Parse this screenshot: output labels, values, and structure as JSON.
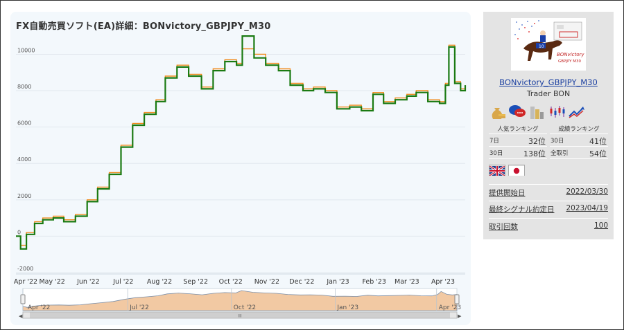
{
  "page": {
    "title": "FX自動売買ソフト(EA)詳細：BONvictory_GBPJPY_M30"
  },
  "chart_data": {
    "type": "line",
    "y_ticks": [
      "10000",
      "8000",
      "6000",
      "4000",
      "2000",
      "0",
      "-2000"
    ],
    "ylim": [
      -2000,
      11500
    ],
    "x_ticks": [
      "Apr '22",
      "May '22",
      "Jun '22",
      "Jul '22",
      "Aug '22",
      "Sep '22",
      "Oct '22",
      "Nov '22",
      "Dec '22",
      "Jan '23",
      "Feb '23",
      "Mar '23",
      "Apr '23"
    ],
    "xlim": [
      "2022-03-30",
      "2023-04-19"
    ],
    "navigator_labels": [
      "Apr '22",
      "Jul '22",
      "Oct '22",
      "Jan '23",
      "Apr '23"
    ],
    "navigator_scroll_label": "III",
    "series": [
      {
        "color": "#f08a1c",
        "x": [
          "2022-03-30",
          "2022-04-03",
          "2022-04-08",
          "2022-04-15",
          "2022-04-22",
          "2022-05-01",
          "2022-05-10",
          "2022-05-20",
          "2022-05-30",
          "2022-06-08",
          "2022-06-18",
          "2022-06-28",
          "2022-07-08",
          "2022-07-18",
          "2022-07-28",
          "2022-08-05",
          "2022-08-15",
          "2022-08-25",
          "2022-09-05",
          "2022-09-15",
          "2022-09-25",
          "2022-10-05",
          "2022-10-10",
          "2022-10-20",
          "2022-10-30",
          "2022-11-10",
          "2022-11-20",
          "2022-12-01",
          "2022-12-10",
          "2022-12-20",
          "2022-12-30",
          "2023-01-10",
          "2023-01-20",
          "2023-01-30",
          "2023-02-08",
          "2023-02-18",
          "2023-02-28",
          "2023-03-08",
          "2023-03-18",
          "2023-03-28",
          "2023-04-02",
          "2023-04-05",
          "2023-04-10",
          "2023-04-15",
          "2023-04-19"
        ],
        "y": [
          0,
          -500,
          200,
          800,
          1000,
          1100,
          900,
          1200,
          2000,
          2700,
          3500,
          5000,
          6200,
          6800,
          7500,
          8800,
          9400,
          8900,
          8200,
          9200,
          9700,
          9500,
          10300,
          10000,
          9500,
          9200,
          8400,
          8100,
          8200,
          8000,
          7100,
          7200,
          7000,
          7900,
          7400,
          7600,
          7800,
          8000,
          7500,
          7400,
          8400,
          10500,
          8500,
          8100,
          8300
        ]
      },
      {
        "color": "#1a7a12",
        "x": [
          "2022-03-30",
          "2022-04-03",
          "2022-04-08",
          "2022-04-15",
          "2022-04-22",
          "2022-05-01",
          "2022-05-10",
          "2022-05-20",
          "2022-05-30",
          "2022-06-08",
          "2022-06-18",
          "2022-06-28",
          "2022-07-08",
          "2022-07-18",
          "2022-07-28",
          "2022-08-05",
          "2022-08-15",
          "2022-08-25",
          "2022-09-05",
          "2022-09-15",
          "2022-09-25",
          "2022-10-05",
          "2022-10-10",
          "2022-10-20",
          "2022-10-30",
          "2022-11-10",
          "2022-11-20",
          "2022-12-01",
          "2022-12-10",
          "2022-12-20",
          "2022-12-30",
          "2023-01-10",
          "2023-01-20",
          "2023-01-30",
          "2023-02-08",
          "2023-02-18",
          "2023-02-28",
          "2023-03-08",
          "2023-03-18",
          "2023-03-28",
          "2023-04-02",
          "2023-04-05",
          "2023-04-10",
          "2023-04-15",
          "2023-04-19"
        ],
        "y": [
          0,
          -700,
          100,
          700,
          900,
          1000,
          800,
          1100,
          1900,
          2600,
          3400,
          4900,
          6100,
          6700,
          7400,
          8700,
          9300,
          8800,
          8100,
          9100,
          9600,
          9400,
          11000,
          9800,
          9400,
          9100,
          8300,
          8000,
          8100,
          7900,
          7000,
          7100,
          6900,
          7800,
          7300,
          7500,
          7700,
          7900,
          7400,
          7300,
          8300,
          10400,
          8400,
          8000,
          8300
        ]
      }
    ]
  },
  "sidebar": {
    "ea_name": "BONvictory_GBPJPY_M30",
    "trader": "Trader BON",
    "logo_text": "BONvictory",
    "logo_sub": "GBPJPY M30",
    "logo_number": "10",
    "icons": [
      "money-bag-icon",
      "chat-bubbles-icon",
      "gold-bars-icon",
      "candlestick-icon",
      "trend-up-icon"
    ],
    "popularity": {
      "header": "人気ランキング",
      "rows": [
        {
          "label": "7日",
          "value": "32位"
        },
        {
          "label": "30日",
          "value": "138位"
        }
      ]
    },
    "performance": {
      "header": "成績ランキング",
      "rows": [
        {
          "label": "30日",
          "value": "41位"
        },
        {
          "label": "全取引",
          "value": "54位"
        }
      ]
    },
    "flags": [
      "uk-flag-icon",
      "japan-flag-icon"
    ],
    "info": [
      {
        "label": "提供開始日",
        "value": "2022/03/30"
      },
      {
        "label": "最終シグナル約定日",
        "value": "2023/04/19"
      },
      {
        "label": "取引回数",
        "value": "100"
      }
    ]
  },
  "colors": {
    "chart_bg": "#f3f8fc",
    "main_line": "#1a7a12",
    "secondary_line": "#f08a1c",
    "navigator_fill": "#f2c9a3",
    "link": "#1a3fa0",
    "sidebar_bg": "#e4e4e4"
  }
}
